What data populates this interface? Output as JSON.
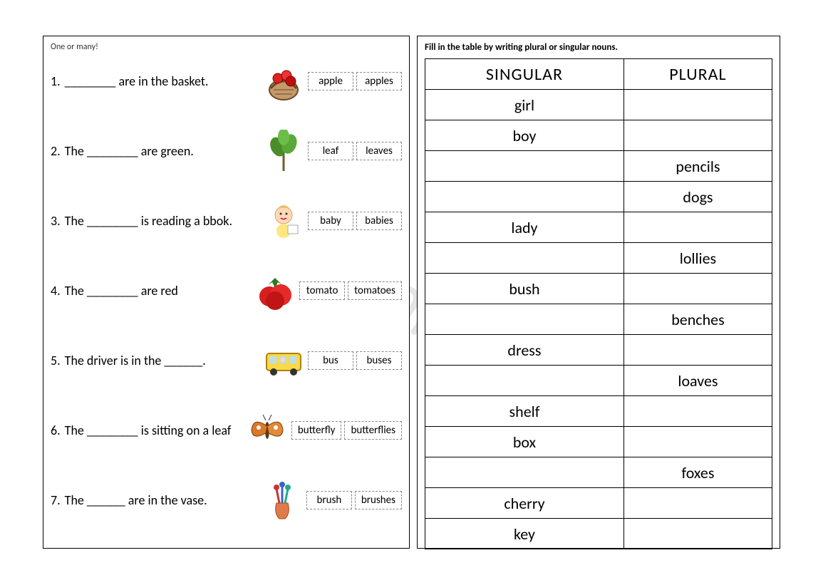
{
  "watermark": "ESLprintables.com",
  "left": {
    "instruction": "One or many!",
    "questions": [
      {
        "num": "1.",
        "sentence": "________ are in the basket.",
        "c1": "apple",
        "c2": "apples",
        "icon": "basket"
      },
      {
        "num": "2.",
        "sentence": "The ________ are green.",
        "c1": "leaf",
        "c2": "leaves",
        "icon": "leaf"
      },
      {
        "num": "3.",
        "sentence": "The ________ is reading a bbok.",
        "c1": "baby",
        "c2": "babies",
        "icon": "baby"
      },
      {
        "num": "4.",
        "sentence": "The ________ are red",
        "c1": "tomato",
        "c2": "tomatoes",
        "icon": "tomato"
      },
      {
        "num": "5.",
        "sentence": "The driver is in the ______.",
        "c1": "bus",
        "c2": "buses",
        "icon": "bus"
      },
      {
        "num": "6.",
        "sentence": "The ________ is sitting on a leaf",
        "c1": "butterfly",
        "c2": "butterflies",
        "icon": "butterfly"
      },
      {
        "num": "7.",
        "sentence": "The ______ are in the vase.",
        "c1": "brush",
        "c2": "brushes",
        "icon": "vase"
      }
    ]
  },
  "right": {
    "instruction": "Fill in the table by writing plural or singular nouns.",
    "headers": {
      "singular": "SINGULAR",
      "plural": "PLURAL"
    },
    "rows": [
      {
        "s": "girl",
        "p": ""
      },
      {
        "s": "boy",
        "p": ""
      },
      {
        "s": "",
        "p": "pencils"
      },
      {
        "s": "",
        "p": "dogs"
      },
      {
        "s": "lady",
        "p": ""
      },
      {
        "s": "",
        "p": "lollies"
      },
      {
        "s": "bush",
        "p": ""
      },
      {
        "s": "",
        "p": "benches"
      },
      {
        "s": "dress",
        "p": ""
      },
      {
        "s": "",
        "p": "loaves"
      },
      {
        "s": "shelf",
        "p": ""
      },
      {
        "s": "box",
        "p": ""
      },
      {
        "s": "",
        "p": "foxes"
      },
      {
        "s": "cherry",
        "p": ""
      },
      {
        "s": "key",
        "p": ""
      }
    ]
  },
  "icons_svg": {
    "basket": "<svg viewBox='0 0 60 60'><ellipse cx='30' cy='42' rx='20' ry='14' fill='#c49a6c' stroke='#6b4a25' stroke-width='2'/><path d='M12 40 Q30 20 48 40' fill='none' stroke='#6b4a25' stroke-width='3'/><circle cx='22' cy='26' r='7' fill='#d22' stroke='#800' stroke-width='1'/><circle cx='34' cy='22' r='7' fill='#e33' stroke='#800' stroke-width='1'/><circle cx='40' cy='30' r='7' fill='#b11' stroke='#800' stroke-width='1'/><path d='M16 42h28M18 48h24' stroke='#6b4a25' stroke-width='1'/></svg>",
    "leaf": "<svg viewBox='0 0 60 60'><line x1='30' y1='58' x2='30' y2='28' stroke='#7a5a2a' stroke-width='3'/><ellipse cx='22' cy='24' rx='10' ry='14' fill='#4a8c2a' transform='rotate(-25 22 24)'/><ellipse cx='38' cy='20' rx='10' ry='14' fill='#5aa83a' transform='rotate(20 38 20)'/><ellipse cx='30' cy='10' rx='8' ry='12' fill='#6abf4a'/></svg>",
    "baby": "<svg viewBox='0 0 60 60'><circle cx='30' cy='22' r='12' fill='#ffd9b3' stroke='#e0a070'/><circle cx='26' cy='20' r='1.5' fill='#333'/><circle cx='34' cy='20' r='1.5' fill='#333'/><path d='M26 26 Q30 29 34 26' stroke='#c06' fill='none' stroke-width='1.5'/><path d='M22 12 Q30 4 38 12' fill='#e8c070'/><rect x='20' y='34' width='20' height='20' rx='10' fill='#ffe680'/><rect x='36' y='36' width='14' height='12' fill='#fff' stroke='#aaa'/></svg>",
    "tomato": "<svg viewBox='0 0 60 60'><circle cx='22' cy='38' r='14' fill='#d81e1e'/><circle cx='38' cy='36' r='15' fill='#e52a2a'/><circle cx='30' cy='44' r='13' fill='#c01515'/><path d='M20 22 L30 12 L40 22 L34 18 L30 26 L26 18 Z' fill='#2f7a1e'/></svg>",
    "bus": "<svg viewBox='0 0 60 60'><rect x='6' y='20' width='48' height='24' rx='4' fill='#f8d94a' stroke='#b08000' stroke-width='2'/><rect x='10' y='24' width='10' height='10' fill='#bde'/><rect x='24' y='24' width='10' height='10' fill='#bde'/><rect x='38' y='24' width='10' height='10' fill='#bde'/><circle cx='16' cy='46' r='5' fill='#333'/><circle cx='44' cy='46' r='5' fill='#333'/><circle cx='29' cy='29' r='3' fill='#ffd9b3'/></svg>",
    "butterfly": "<svg viewBox='0 0 60 60'><ellipse cx='30' cy='30' rx='3' ry='12' fill='#5a3a1a'/><path d='M30 24 Q10 10 8 30 Q10 44 28 34 Z' fill='#d97a2a' stroke='#7a3a0a'/><path d='M30 24 Q50 10 52 30 Q50 44 32 34 Z' fill='#e08a3a' stroke='#7a3a0a'/><circle cx='18' cy='26' r='3' fill='#fff'/><circle cx='42' cy='26' r='3' fill='#fff'/><line x1='28' y1='16' x2='24' y2='8' stroke='#333'/><line x1='32' y1='16' x2='36' y2='8' stroke='#333'/></svg>",
    "vase": "<svg viewBox='0 0 60 60'><path d='M22 34 Q18 48 26 56 H34 Q42 48 38 34 Z' fill='#e07a4a' stroke='#a04a1a'/><line x1='26' y1='34' x2='22' y2='14' stroke='#c33' stroke-width='3'/><line x1='30' y1='34' x2='30' y2='10' stroke='#36c' stroke-width='3'/><line x1='34' y1='34' x2='38' y2='14' stroke='#2a8' stroke-width='3'/><circle cx='22' cy='12' r='4' fill='#c33'/><circle cx='30' cy='8' r='4' fill='#36c'/><circle cx='38' cy='12' r='4' fill='#2a8'/></svg>"
  }
}
